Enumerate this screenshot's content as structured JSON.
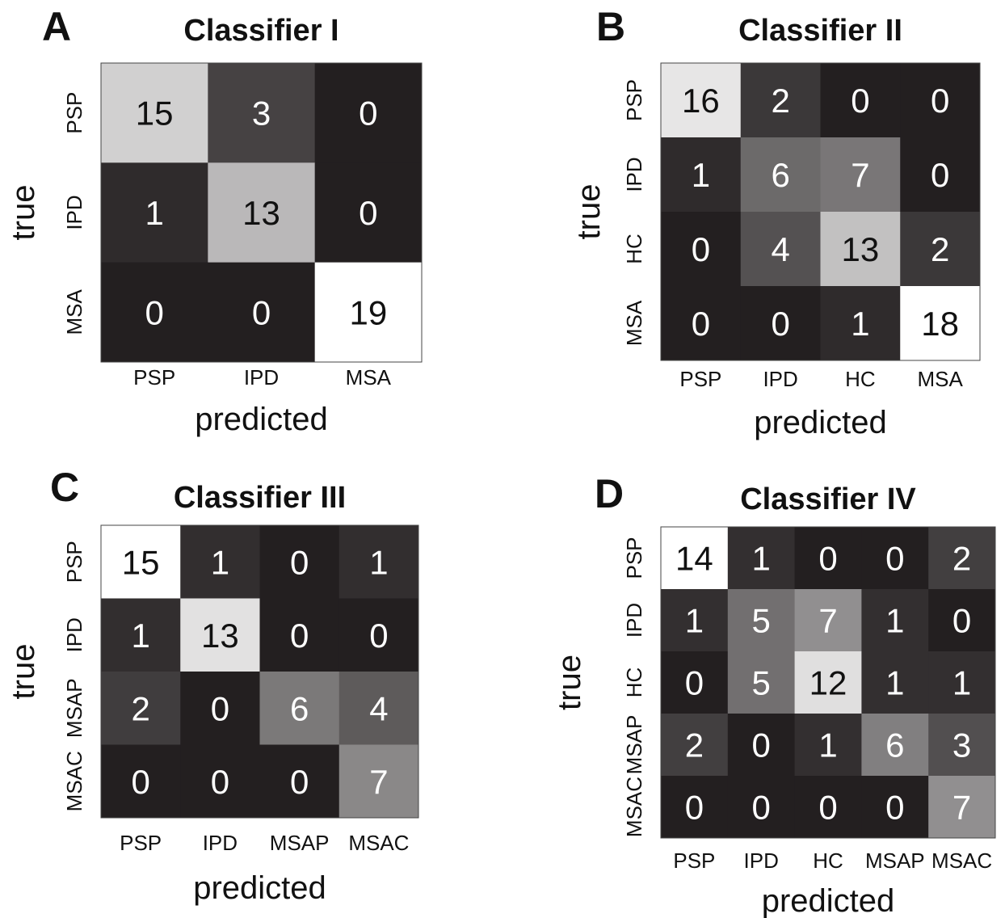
{
  "colors": {
    "heat_low": "#231f20",
    "heat_high": "#ffffff",
    "text_on_dark": "#ffffff",
    "text_on_light": "#111111"
  },
  "chart_data": [
    {
      "type": "heatmap",
      "panel_letter": "A",
      "title": "Classifier I",
      "xlabel": "predicted",
      "ylabel": "true",
      "x_categories": [
        "PSP",
        "IPD",
        "MSA"
      ],
      "y_categories": [
        "PSP",
        "IPD",
        "MSA"
      ],
      "values": [
        [
          15,
          3,
          0
        ],
        [
          1,
          13,
          0
        ],
        [
          0,
          0,
          19
        ]
      ],
      "grid": false
    },
    {
      "type": "heatmap",
      "panel_letter": "B",
      "title": "Classifier II",
      "xlabel": "predicted",
      "ylabel": "true",
      "x_categories": [
        "PSP",
        "IPD",
        "HC",
        "MSA"
      ],
      "y_categories": [
        "PSP",
        "IPD",
        "HC",
        "MSA"
      ],
      "values": [
        [
          16,
          2,
          0,
          0
        ],
        [
          1,
          6,
          7,
          0
        ],
        [
          0,
          4,
          13,
          2
        ],
        [
          0,
          0,
          1,
          18
        ]
      ],
      "grid": false
    },
    {
      "type": "heatmap",
      "panel_letter": "C",
      "title": "Classifier III",
      "xlabel": "predicted",
      "ylabel": "true",
      "x_categories": [
        "PSP",
        "IPD",
        "MSAP",
        "MSAC"
      ],
      "y_categories": [
        "PSP",
        "IPD",
        "MSAP",
        "MSAC"
      ],
      "values": [
        [
          15,
          1,
          0,
          1
        ],
        [
          1,
          13,
          0,
          0
        ],
        [
          2,
          0,
          6,
          4
        ],
        [
          0,
          0,
          0,
          7
        ]
      ],
      "grid": false
    },
    {
      "type": "heatmap",
      "panel_letter": "D",
      "title": "Classifier IV",
      "xlabel": "predicted",
      "ylabel": "true",
      "x_categories": [
        "PSP",
        "IPD",
        "HC",
        "MSAP",
        "MSAC"
      ],
      "y_categories": [
        "PSP",
        "IPD",
        "HC",
        "MSAP",
        "MSAC"
      ],
      "values": [
        [
          14,
          1,
          0,
          0,
          2
        ],
        [
          1,
          5,
          7,
          1,
          0
        ],
        [
          0,
          5,
          12,
          1,
          1
        ],
        [
          2,
          0,
          1,
          6,
          3
        ],
        [
          0,
          0,
          0,
          0,
          7
        ]
      ],
      "grid": false
    }
  ]
}
